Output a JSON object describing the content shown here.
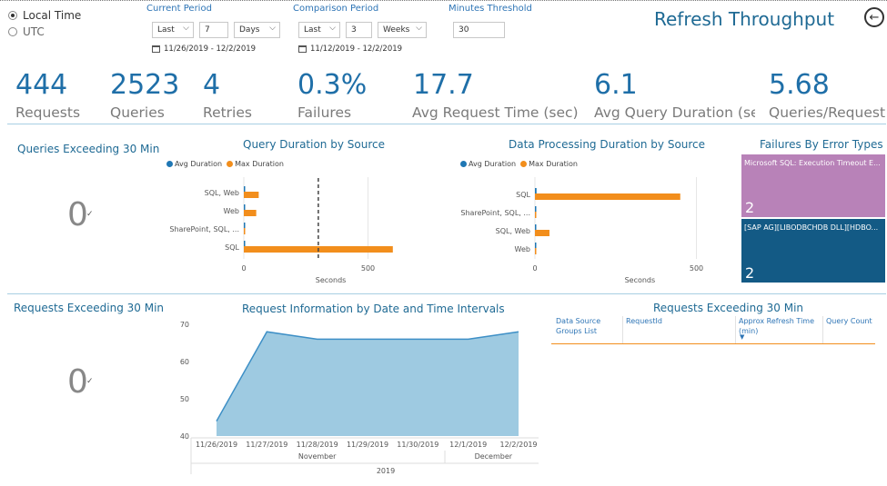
{
  "timezone": {
    "options": [
      {
        "label": "Local Time",
        "selected": true
      },
      {
        "label": "UTC",
        "selected": false
      }
    ]
  },
  "current_period": {
    "title": "Current Period",
    "mode": "Last",
    "amount": "7",
    "unit": "Days",
    "range": "11/26/2019 - 12/2/2019"
  },
  "comparison_period": {
    "title": "Comparison Period",
    "mode": "Last",
    "amount": "3",
    "unit": "Weeks",
    "range": "11/12/2019 - 12/2/2019"
  },
  "threshold": {
    "title": "Minutes Threshold",
    "value": "30"
  },
  "page_title": "Refresh Throughput",
  "kpis": [
    {
      "value": "444",
      "label": "Requests"
    },
    {
      "value": "2523",
      "label": "Queries"
    },
    {
      "value": "4",
      "label": "Retries"
    },
    {
      "value": "0.3%",
      "label": "Failures"
    },
    {
      "value": "17.7",
      "label": "Avg Request Time (sec)"
    },
    {
      "value": "6.1",
      "label": "Avg Query Duration (sec"
    },
    {
      "value": "5.68",
      "label": "Queries/Request"
    }
  ],
  "queries_exceeding": {
    "title": "Queries Exceeding 30 Min",
    "value": "0"
  },
  "requests_exceeding": {
    "title": "Requests Exceeding 30 Min",
    "value": "0"
  },
  "colors": {
    "avg": "#1f77b4",
    "max": "#f28e1c",
    "area": "#9ecae1",
    "area_line": "#3d8fc6",
    "tile1": "#b882b8",
    "tile2": "#135a85"
  },
  "chart_data": [
    {
      "type": "bar",
      "orientation": "horizontal",
      "title": "Query Duration by Source",
      "categories": [
        "SQL, Web",
        "Web",
        "SharePoint, SQL, ...",
        "SQL"
      ],
      "series": [
        {
          "name": "Avg Duration",
          "values": [
            3,
            2,
            1,
            3
          ]
        },
        {
          "name": "Max Duration",
          "values": [
            60,
            50,
            5,
            600
          ]
        }
      ],
      "xlabel": "Seconds",
      "xticks": [
        0,
        500
      ],
      "xlim": [
        0,
        700
      ],
      "reference_line": 300
    },
    {
      "type": "bar",
      "orientation": "horizontal",
      "title": "Data Processing Duration by Source",
      "categories": [
        "SQL",
        "SharePoint, SQL, ...",
        "SQL, Web",
        "Web"
      ],
      "series": [
        {
          "name": "Avg Duration",
          "values": [
            5,
            3,
            4,
            1
          ]
        },
        {
          "name": "Max Duration",
          "values": [
            450,
            2,
            45,
            2
          ]
        }
      ],
      "xlabel": "Seconds",
      "xticks": [
        0,
        500
      ],
      "xlim": [
        0,
        650
      ]
    },
    {
      "type": "area",
      "title": "Request Information by Date and Time Intervals",
      "categories": [
        "11/26/2019",
        "11/27/2019",
        "11/28/2019",
        "11/29/2019",
        "11/30/2019",
        "12/1/2019",
        "12/2/2019"
      ],
      "values": [
        44,
        68,
        66,
        66,
        66,
        66,
        68
      ],
      "yticks": [
        40,
        50,
        60,
        70
      ],
      "ylim": [
        40,
        70
      ],
      "month_groups": [
        {
          "label": "November",
          "span": [
            0,
            4
          ]
        },
        {
          "label": "December",
          "span": [
            5,
            6
          ]
        }
      ],
      "year": "2019"
    },
    {
      "type": "treemap",
      "title": "Failures By Error Types",
      "items": [
        {
          "label": "Microsoft SQL: Execution Timeout E...",
          "value": "2"
        },
        {
          "label": "[SAP AG][LIBODBCHDB DLL][HDBO...",
          "value": "2"
        }
      ]
    },
    {
      "type": "table",
      "title": "Requests Exceeding 30 Min",
      "columns": [
        "Data Source Groups List",
        "RequestId",
        "Approx Refresh Time (min)",
        "Query Count"
      ],
      "rows": []
    }
  ]
}
